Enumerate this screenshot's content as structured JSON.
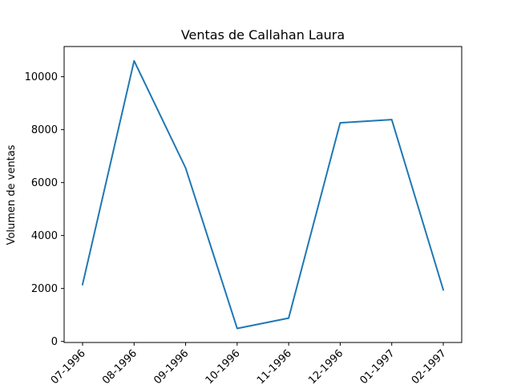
{
  "chart_data": {
    "type": "line",
    "title": "Ventas de Callahan Laura",
    "xlabel": "",
    "ylabel": "Volumen de ventas",
    "categories": [
      "07-1996",
      "08-1996",
      "09-1996",
      "10-1996",
      "11-1996",
      "12-1996",
      "01-1997",
      "02-1997"
    ],
    "series": [
      {
        "values": [
          2150,
          10600,
          6550,
          490,
          880,
          8260,
          8380,
          1950
        ]
      }
    ],
    "y_ticks": [
      0,
      2000,
      4000,
      6000,
      8000,
      10000
    ],
    "ylim": [
      -40,
      11140
    ],
    "x_tick_rotation": 45,
    "grid": false,
    "line_color": "#1f77b4"
  }
}
